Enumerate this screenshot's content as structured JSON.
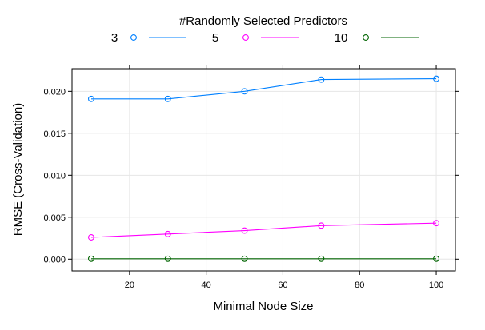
{
  "chart_data": {
    "type": "line",
    "legend_title": "#Randomly Selected Predictors",
    "legend_position": "top",
    "xlabel": "Minimal Node Size",
    "ylabel": "RMSE (Cross-Validation)",
    "xlim": [
      5,
      105
    ],
    "ylim": [
      -0.0014,
      0.0227
    ],
    "x_ticks": [
      20,
      40,
      60,
      80,
      100
    ],
    "y_ticks": [
      0.0,
      0.005,
      0.01,
      0.015,
      0.02
    ],
    "x_tick_labels": [
      "20",
      "40",
      "60",
      "80",
      "100"
    ],
    "y_tick_labels": [
      "0.000",
      "0.005",
      "0.010",
      "0.015",
      "0.020"
    ],
    "grid": true,
    "x": [
      10,
      30,
      50,
      70,
      100
    ],
    "series": [
      {
        "name": "3",
        "color": "#0080ff",
        "values": [
          0.0191,
          0.0191,
          0.02,
          0.0214,
          0.0215
        ]
      },
      {
        "name": "5",
        "color": "#ff00ff",
        "values": [
          0.0026,
          0.003,
          0.0034,
          0.004,
          0.0043
        ]
      },
      {
        "name": "10",
        "color": "#006400",
        "values": [
          5e-05,
          5e-05,
          5e-05,
          5e-05,
          5e-05
        ]
      }
    ]
  }
}
